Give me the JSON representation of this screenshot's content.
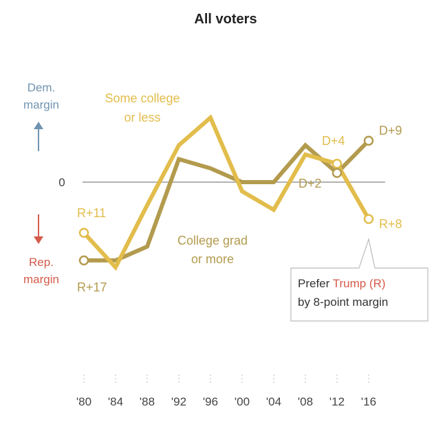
{
  "chart_data": {
    "type": "line",
    "title": "All voters",
    "x": [
      "'80",
      "'84",
      "'88",
      "'92",
      "'96",
      "'00",
      "'04",
      "'08",
      "'12",
      "'16"
    ],
    "ylabel_top": [
      "Dem.",
      "margin"
    ],
    "ylabel_bottom": [
      "Rep.",
      "margin"
    ],
    "zero_label": "0",
    "series": [
      {
        "name": "Some college or less",
        "label_lines": [
          "Some college",
          "or less"
        ],
        "color": "#e2bd4c",
        "values": [
          -11,
          -18.5,
          -5,
          8,
          14,
          -2,
          -6,
          6,
          4,
          -8
        ],
        "start_label": "R+11",
        "end_label": "R+8",
        "extra_label": "D+4"
      },
      {
        "name": "College grad or more",
        "label_lines": [
          "College grad",
          "or more"
        ],
        "color": "#b39b4e",
        "values": [
          -17,
          -17,
          -14,
          5,
          3,
          0,
          0,
          8,
          2,
          9
        ],
        "start_label": "R+17",
        "end_label": "D+9",
        "extra_label": "D+2"
      }
    ],
    "ylim": [
      -25,
      25
    ],
    "colors": {
      "dem": "#6f93b0",
      "rep": "#d45a4a",
      "axis": "#999999"
    },
    "callout": {
      "prefix": "Prefer ",
      "name": "Trump (R)",
      "line2": "by 8-point margin"
    }
  }
}
